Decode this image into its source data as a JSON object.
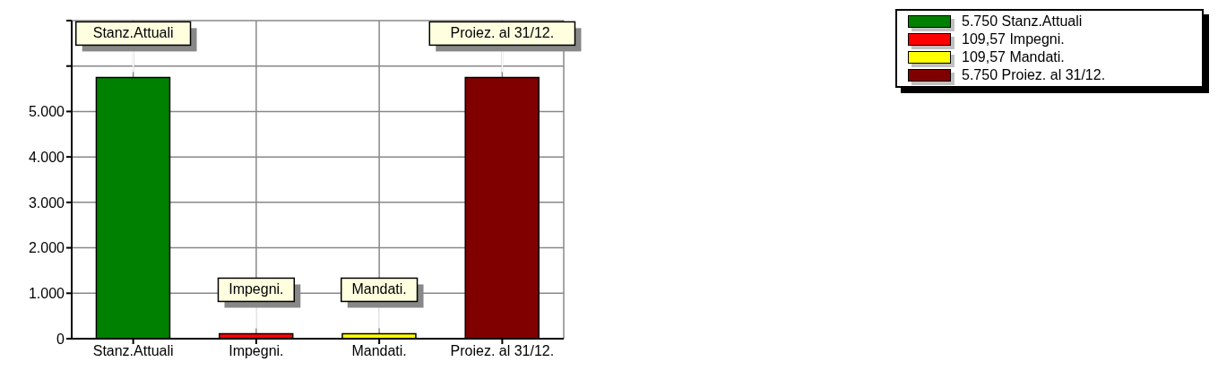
{
  "chart_data": {
    "type": "bar",
    "categories": [
      "Stanz.Attuali",
      "Impegni.",
      "Mandati.",
      "Proiez. al 31/12."
    ],
    "stacked": true,
    "series": [
      {
        "name": "5.750 Stanz.Attuali",
        "color": "#008000",
        "values": [
          5750,
          null,
          null,
          null
        ]
      },
      {
        "name": "109,57 Impegni.",
        "color": "#ff0000",
        "values": [
          null,
          109.57,
          null,
          null
        ]
      },
      {
        "name": "109,57 Mandati.",
        "color": "#ffff00",
        "values": [
          null,
          null,
          109.57,
          null
        ]
      },
      {
        "name": "5.750 Proiez. al 31/12.",
        "color": "#800000",
        "values": [
          null,
          null,
          null,
          5750
        ]
      }
    ],
    "ylim": [
      0,
      7000
    ],
    "yticks": [
      {
        "value": 0,
        "label": "0"
      },
      {
        "value": 1000,
        "label": "1.000"
      },
      {
        "value": 2000,
        "label": "2.000"
      },
      {
        "value": 3000,
        "label": "3.000"
      },
      {
        "value": 4000,
        "label": "4.000"
      },
      {
        "value": 5000,
        "label": "5.000"
      },
      {
        "value": 6000,
        "label": null
      },
      {
        "value": 7000,
        "label": null
      }
    ],
    "annotations": [
      {
        "text": "Stanz.Attuali",
        "x": "Stanz.Attuali",
        "y": 5750
      },
      {
        "text": "Impegni.",
        "x": "Impegni.",
        "y": 109.57
      },
      {
        "text": "Mandati.",
        "x": "Mandati.",
        "y": 109.57
      },
      {
        "text": "Proiez. al 31/12.",
        "x": "Proiez. al 31/12.",
        "y": 5750
      }
    ],
    "grid": true,
    "legend": "top right"
  }
}
